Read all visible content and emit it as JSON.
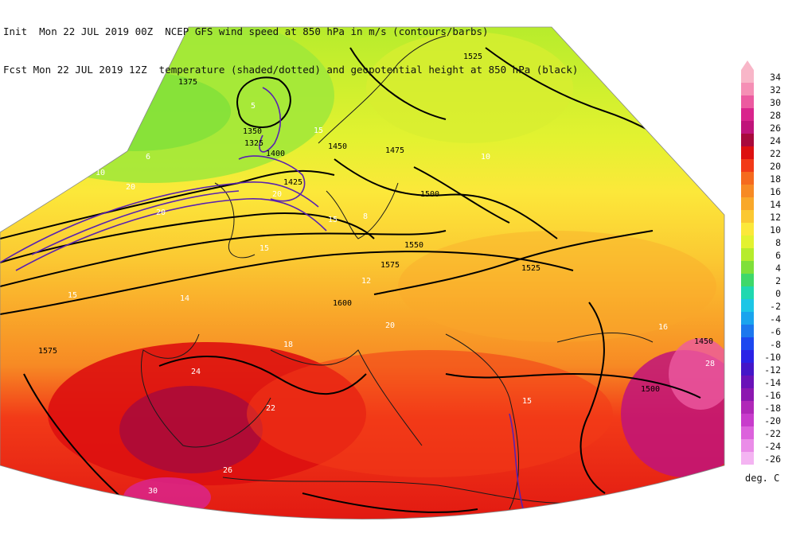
{
  "header": {
    "init_line": "Init  Mon 22 JUL 2019 00Z  NCEP GFS wind speed at 850 hPa in m/s (contours/barbs)",
    "fcst_line": "Fcst Mon 22 JUL 2019 12Z  temperature (shaded/dotted) and geopotential height at 850 hPa (black)"
  },
  "colorbar": {
    "units": "deg. C",
    "levels": [
      {
        "label": "34",
        "color": "#f8b6c8"
      },
      {
        "label": "32",
        "color": "#f58fb5"
      },
      {
        "label": "30",
        "color": "#ec5aa0"
      },
      {
        "label": "28",
        "color": "#d9248c"
      },
      {
        "label": "26",
        "color": "#c0147a"
      },
      {
        "label": "24",
        "color": "#a80a3c"
      },
      {
        "label": "22",
        "color": "#dd1010"
      },
      {
        "label": "20",
        "color": "#f23a18"
      },
      {
        "label": "18",
        "color": "#f56a1e"
      },
      {
        "label": "16",
        "color": "#f78a24"
      },
      {
        "label": "14",
        "color": "#f9a82a"
      },
      {
        "label": "12",
        "color": "#fbc832"
      },
      {
        "label": "10",
        "color": "#fce83a"
      },
      {
        "label": "8",
        "color": "#e3f230"
      },
      {
        "label": "6",
        "color": "#b6ec2c"
      },
      {
        "label": "4",
        "color": "#7fe03a"
      },
      {
        "label": "2",
        "color": "#3fd86a"
      },
      {
        "label": "0",
        "color": "#20d8b0"
      },
      {
        "label": "-2",
        "color": "#1cc6e6"
      },
      {
        "label": "-4",
        "color": "#1aa4ee"
      },
      {
        "label": "-6",
        "color": "#1c78ee"
      },
      {
        "label": "-8",
        "color": "#1c48f0"
      },
      {
        "label": "-10",
        "color": "#2a22e6"
      },
      {
        "label": "-12",
        "color": "#4416c8"
      },
      {
        "label": "-14",
        "color": "#6a12b8"
      },
      {
        "label": "-16",
        "color": "#8c18b0"
      },
      {
        "label": "-18",
        "color": "#b028b8"
      },
      {
        "label": "-20",
        "color": "#c83ccc"
      },
      {
        "label": "-22",
        "color": "#dc62dc"
      },
      {
        "label": "-24",
        "color": "#ea8ce8"
      },
      {
        "label": "-26",
        "color": "#f4b4f2"
      }
    ]
  },
  "map": {
    "height_labels": [
      "1375",
      "1350",
      "1325",
      "1400",
      "1450",
      "1425",
      "1475",
      "1500",
      "1525",
      "1550",
      "1575",
      "1600",
      "1450",
      "1500",
      "1525",
      "1575"
    ],
    "wind_labels": [
      "15",
      "20",
      "20",
      "15",
      "15",
      "10",
      "5",
      "15",
      "20",
      "15"
    ],
    "temp_labels": [
      "10",
      "12",
      "14",
      "16",
      "18",
      "20",
      "22",
      "24",
      "26",
      "28",
      "30",
      "8",
      "6"
    ]
  }
}
